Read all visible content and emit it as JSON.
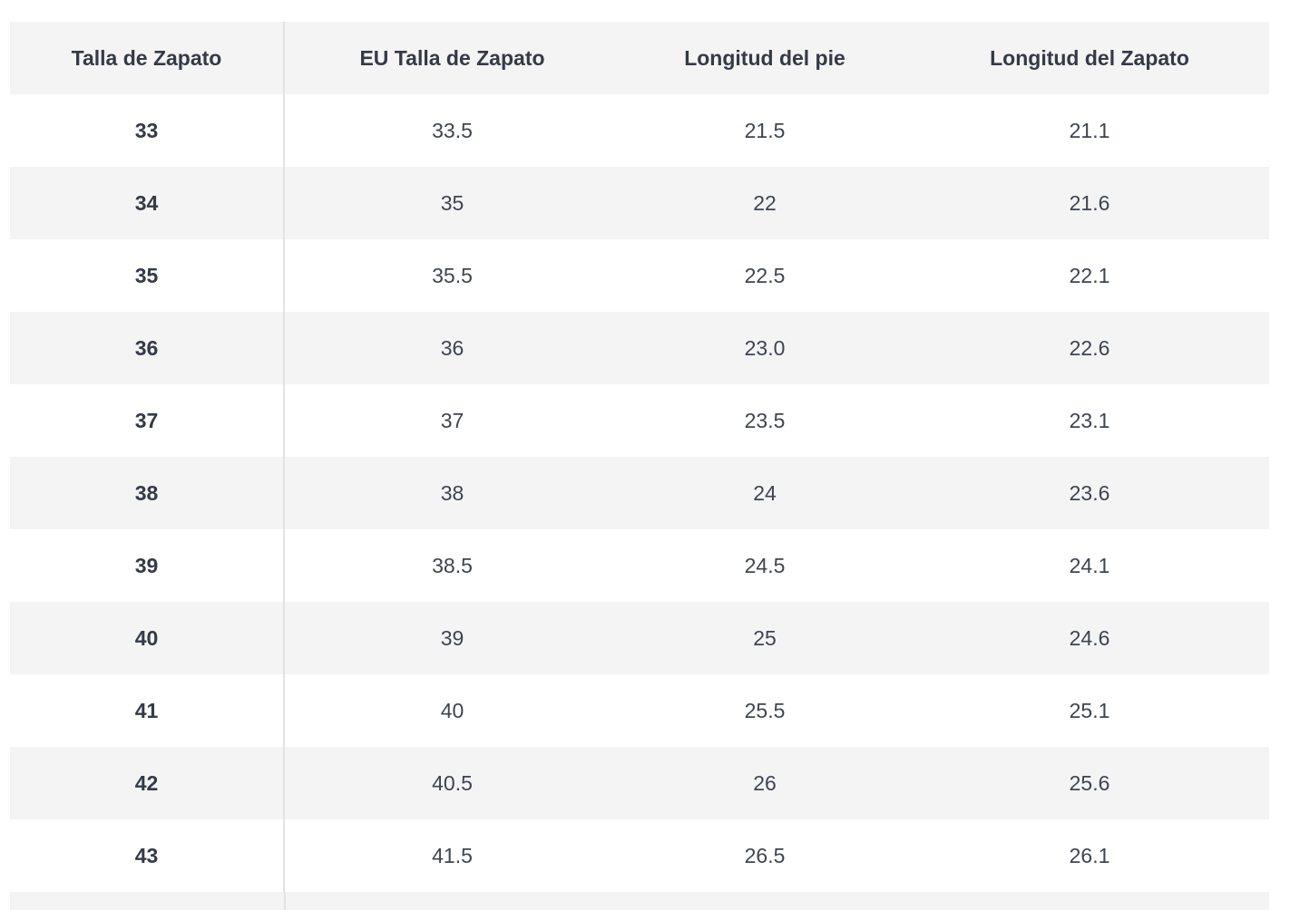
{
  "table": {
    "headers": [
      "Talla de Zapato",
      "EU Talla de Zapato",
      "Longitud del pie",
      "Longitud del Zapato"
    ],
    "rows": [
      [
        "33",
        "33.5",
        "21.5",
        "21.1"
      ],
      [
        "34",
        "35",
        "22",
        "21.6"
      ],
      [
        "35",
        "35.5",
        "22.5",
        "22.1"
      ],
      [
        "36",
        "36",
        "23.0",
        "22.6"
      ],
      [
        "37",
        "37",
        "23.5",
        "23.1"
      ],
      [
        "38",
        "38",
        "24",
        "23.6"
      ],
      [
        "39",
        "38.5",
        "24.5",
        "24.1"
      ],
      [
        "40",
        "39",
        "25",
        "24.6"
      ],
      [
        "41",
        "40",
        "25.5",
        "25.1"
      ],
      [
        "42",
        "40.5",
        "26",
        "25.6"
      ],
      [
        "43",
        "41.5",
        "26.5",
        "26.1"
      ]
    ]
  }
}
